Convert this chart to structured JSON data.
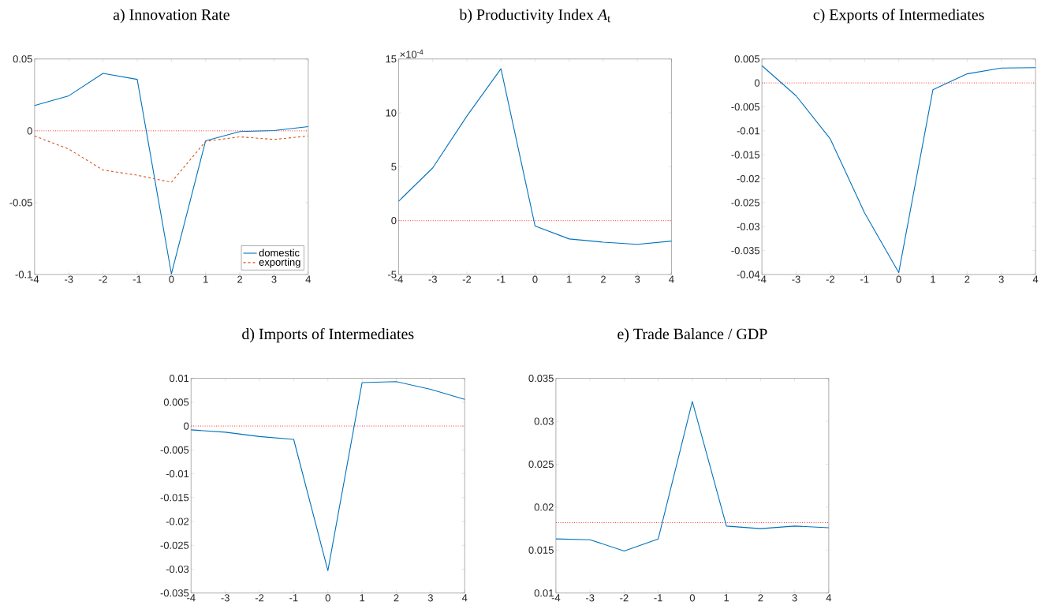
{
  "chart_data": [
    {
      "type": "line",
      "title": "a) Innovation Rate",
      "x": [
        -4,
        -3,
        -2,
        -1,
        0,
        1,
        2,
        3,
        4
      ],
      "xlim": [
        -4,
        4
      ],
      "xticks": [
        -4,
        -3,
        -2,
        -1,
        0,
        1,
        2,
        3,
        4
      ],
      "ylim": [
        -0.1,
        0.05
      ],
      "yticks": [
        -0.1,
        -0.05,
        0,
        0.05
      ],
      "legend": "bottom right",
      "series": [
        {
          "name": "domestic",
          "color": "#0072bd",
          "line_style": "solid",
          "values": [
            0.0176,
            0.0244,
            0.04,
            0.0358,
            -0.0996,
            -0.0069,
            -0.0005,
            0.0002,
            0.0029
          ]
        },
        {
          "name": "exporting",
          "color": "#d95319",
          "line_style": "dashed",
          "values": [
            -0.0036,
            -0.0127,
            -0.0273,
            -0.0309,
            -0.0358,
            -0.0073,
            -0.0042,
            -0.006,
            -0.0036
          ]
        }
      ],
      "ref_lines": [
        {
          "axis": "y",
          "value": 0,
          "color": "#ff0000",
          "line_style": "dotted"
        }
      ]
    },
    {
      "type": "line",
      "title": "b) Productivity Index *A*$_{t}$",
      "x": [
        -4,
        -3,
        -2,
        -1,
        0,
        1,
        2,
        3,
        4
      ],
      "xlim": [
        -4,
        4
      ],
      "xticks": [
        -4,
        -3,
        -2,
        -1,
        0,
        1,
        2,
        3,
        4
      ],
      "ylim": [
        -5,
        15
      ],
      "yticks": [
        -5,
        0,
        5,
        10,
        15
      ],
      "annotations": [
        "×10$^{-4}$"
      ],
      "series": [
        {
          "color": "#0072bd",
          "line_style": "solid",
          "values": [
            1.8,
            4.9,
            9.7,
            14.1,
            -0.5,
            -1.7,
            -2.0,
            -2.2,
            -1.9
          ]
        }
      ],
      "ref_lines": [
        {
          "axis": "y",
          "value": 0,
          "color": "#ff0000",
          "line_style": "dotted"
        }
      ]
    },
    {
      "type": "line",
      "title": "c) Exports of Intermediates",
      "x": [
        -4,
        -3,
        -2,
        -1,
        0,
        1,
        2,
        3,
        4
      ],
      "xlim": [
        -4,
        4
      ],
      "xticks": [
        -4,
        -3,
        -2,
        -1,
        0,
        1,
        2,
        3,
        4
      ],
      "ylim": [
        -0.04,
        0.005
      ],
      "yticks": [
        -0.04,
        -0.035,
        -0.03,
        -0.025,
        -0.02,
        -0.015,
        -0.01,
        -0.005,
        0,
        0.005
      ],
      "series": [
        {
          "color": "#0072bd",
          "line_style": "solid",
          "values": [
            0.0036,
            -0.0027,
            -0.0117,
            -0.0271,
            -0.0396,
            -0.0014,
            0.0019,
            0.0031,
            0.0032
          ]
        }
      ],
      "ref_lines": [
        {
          "axis": "y",
          "value": 0,
          "color": "#ff0000",
          "line_style": "dotted"
        }
      ]
    },
    {
      "type": "line",
      "title": "d) Imports of Intermediates",
      "x": [
        -4,
        -3,
        -2,
        -1,
        0,
        1,
        2,
        3,
        4
      ],
      "xlim": [
        -4,
        4
      ],
      "xticks": [
        -4,
        -3,
        -2,
        -1,
        0,
        1,
        2,
        3,
        4
      ],
      "ylim": [
        -0.035,
        0.01
      ],
      "yticks": [
        -0.035,
        -0.03,
        -0.025,
        -0.02,
        -0.015,
        -0.01,
        -0.005,
        0,
        0.005,
        0.01
      ],
      "series": [
        {
          "color": "#0072bd",
          "line_style": "solid",
          "values": [
            -0.0008,
            -0.0013,
            -0.0022,
            -0.0028,
            -0.0303,
            0.0091,
            0.0093,
            0.0077,
            0.0056
          ]
        }
      ],
      "ref_lines": [
        {
          "axis": "y",
          "value": 0,
          "color": "#ff0000",
          "line_style": "dotted"
        }
      ]
    },
    {
      "type": "line",
      "title": "e) Trade Balance / GDP",
      "x": [
        -4,
        -3,
        -2,
        -1,
        0,
        1,
        2,
        3,
        4
      ],
      "xlim": [
        -4,
        4
      ],
      "xticks": [
        -4,
        -3,
        -2,
        -1,
        0,
        1,
        2,
        3,
        4
      ],
      "ylim": [
        0.01,
        0.035
      ],
      "yticks": [
        0.01,
        0.015,
        0.02,
        0.025,
        0.03,
        0.035
      ],
      "series": [
        {
          "color": "#0072bd",
          "line_style": "solid",
          "values": [
            0.0163,
            0.0162,
            0.0149,
            0.0163,
            0.0323,
            0.0178,
            0.0175,
            0.0178,
            0.0176
          ]
        }
      ],
      "ref_lines": [
        {
          "axis": "y",
          "value": 0.0182,
          "color": "#ff0000",
          "line_style": "dotted"
        }
      ]
    }
  ]
}
